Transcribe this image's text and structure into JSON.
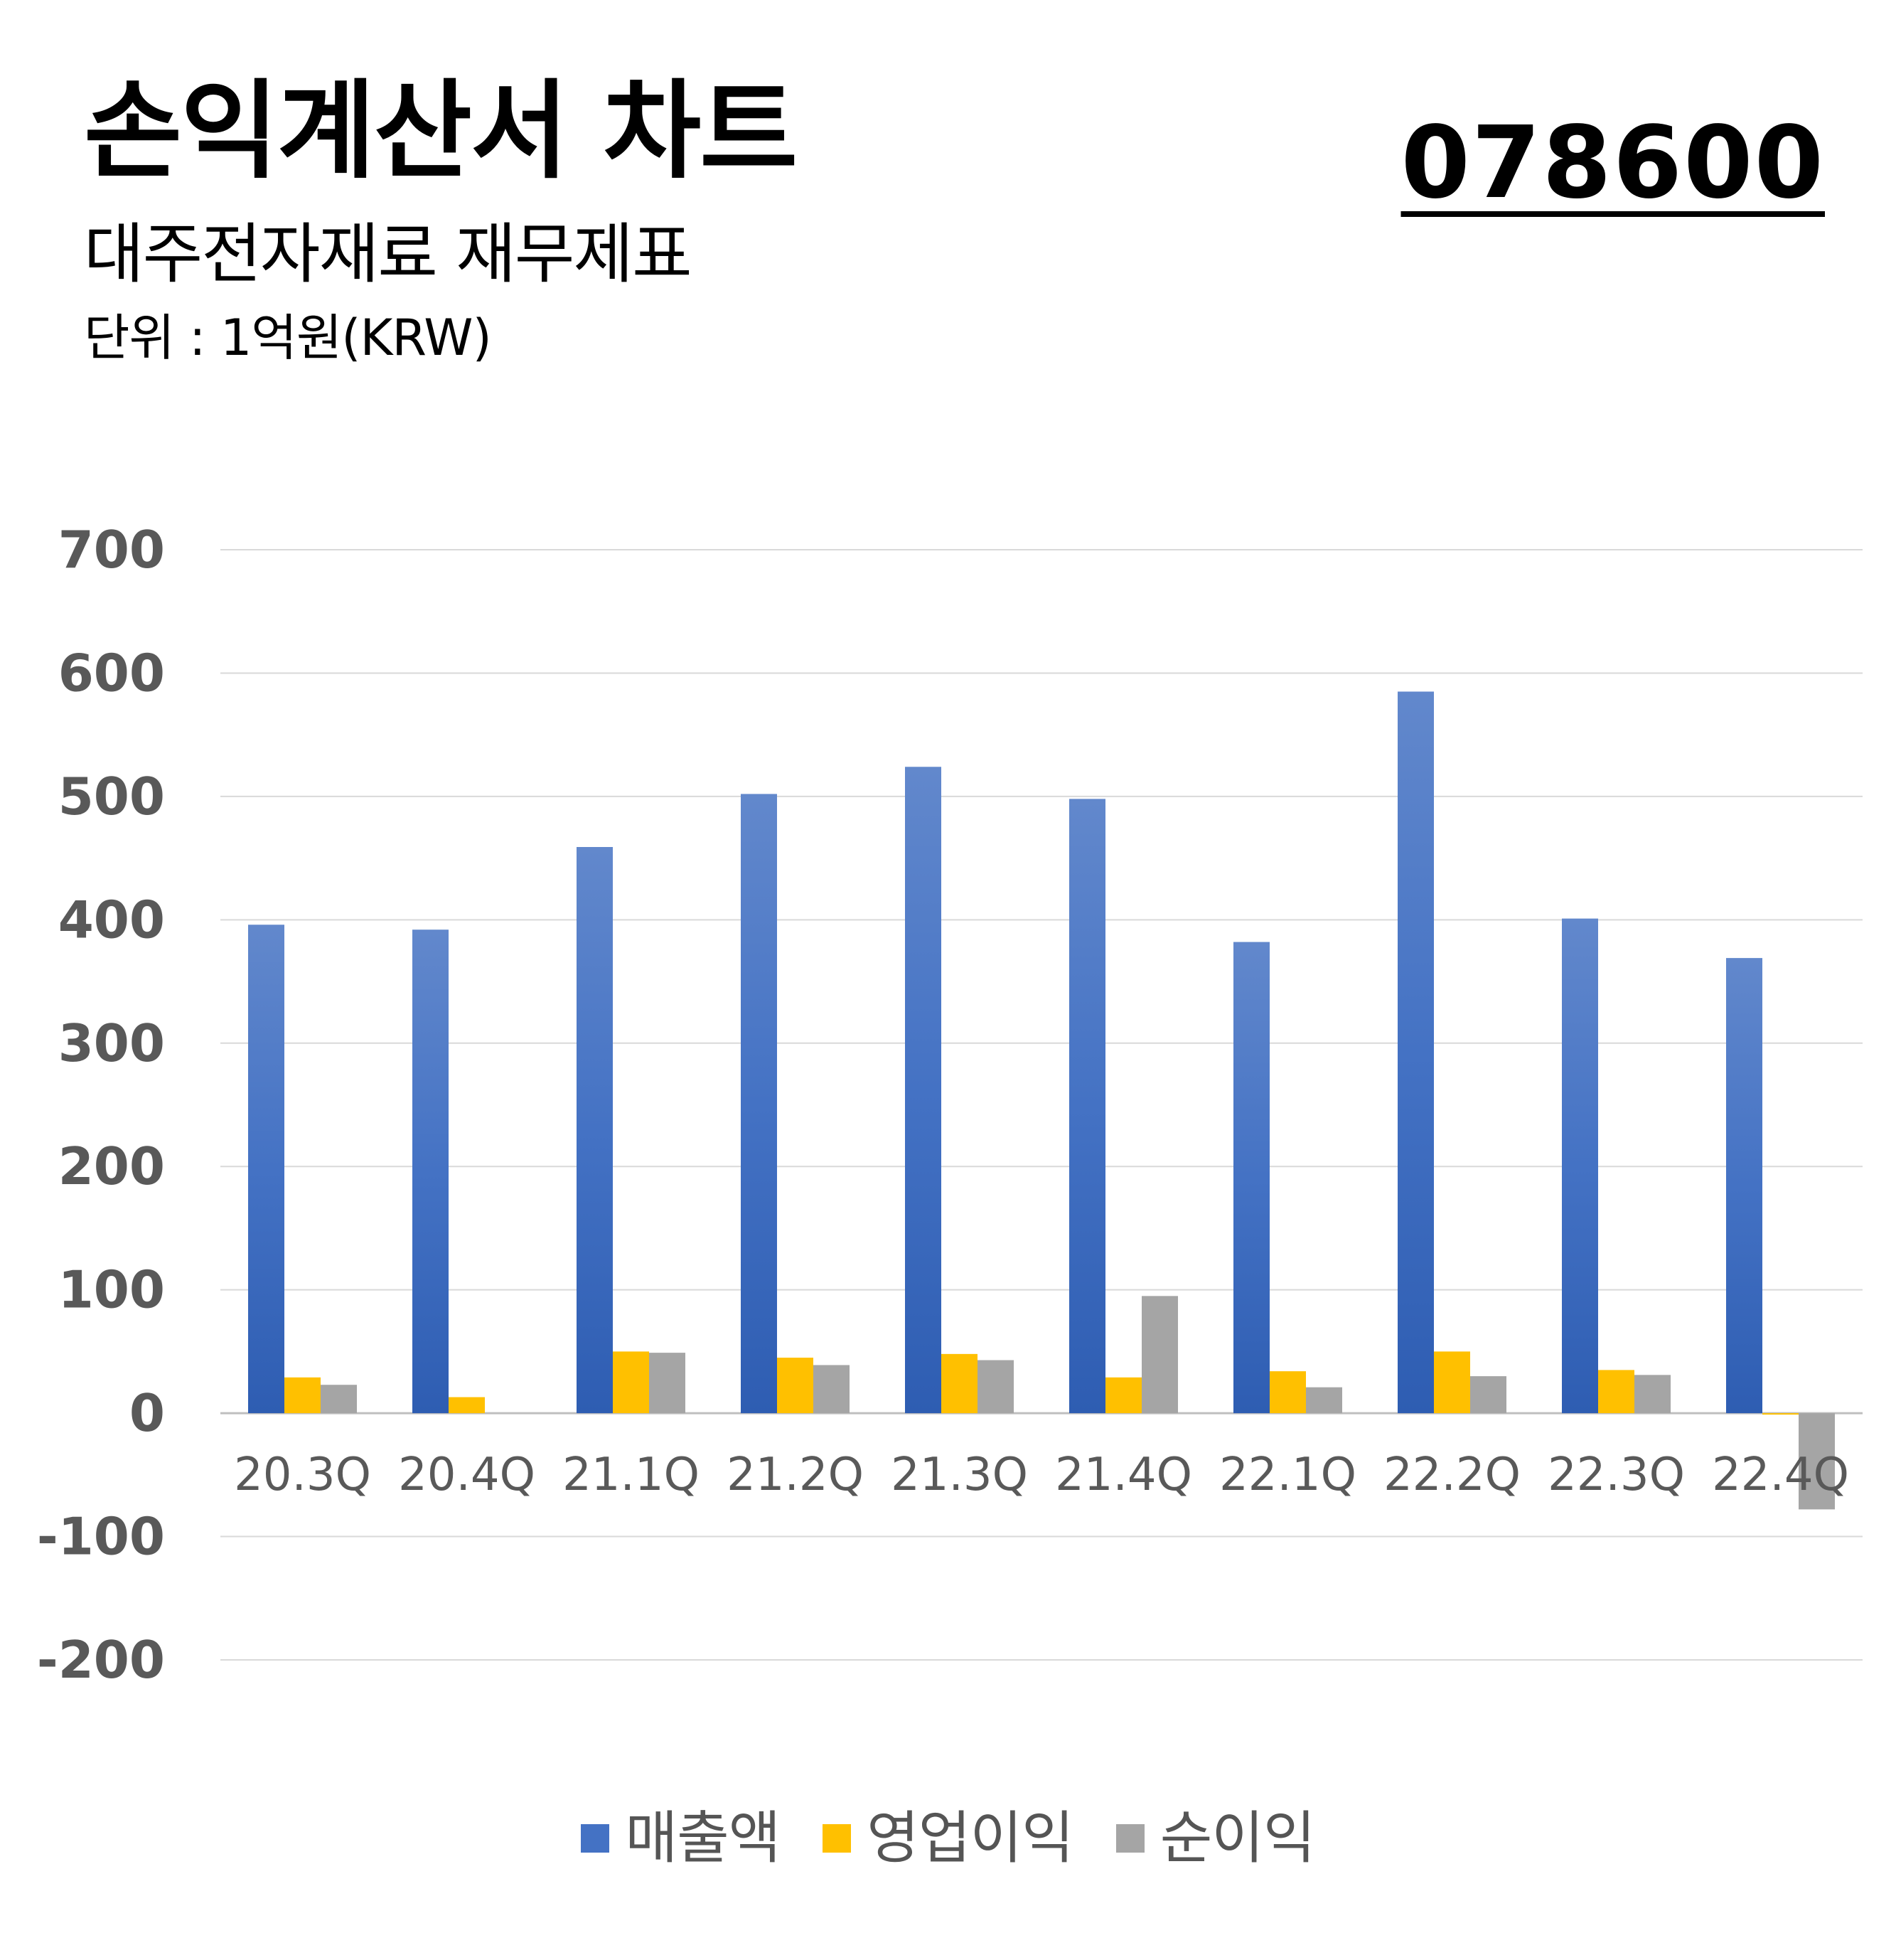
{
  "header": {
    "title": "손익계산서 차트",
    "subtitle": "대주전자재료 재무제표",
    "unit": "단위 : 1억원(KRW)",
    "ticker": "078600"
  },
  "colors": {
    "revenue": "#4472C4",
    "operating_profit": "#FFC000",
    "net_income": "#A5A5A5",
    "gridline": "#d9d9d9",
    "axis_text": "#595959"
  },
  "chart_data": {
    "type": "bar",
    "categories": [
      "20.3Q",
      "20.4Q",
      "21.1Q",
      "21.2Q",
      "21.3Q",
      "21.4Q",
      "22.1Q",
      "22.2Q",
      "22.3Q",
      "22.4Q"
    ],
    "series": [
      {
        "name": "매출액",
        "values": [
          396,
          392,
          459,
          502,
          524,
          498,
          382,
          585,
          401,
          369
        ]
      },
      {
        "name": "영업이익",
        "values": [
          29,
          13,
          50,
          45,
          48,
          29,
          34,
          50,
          35,
          -1
        ]
      },
      {
        "name": "순이익",
        "values": [
          23,
          0,
          49,
          39,
          43,
          95,
          21,
          30,
          31,
          -78
        ]
      }
    ],
    "ylim": [
      -200,
      700
    ],
    "yticks": [
      700,
      600,
      500,
      400,
      300,
      200,
      100,
      0,
      -100,
      -200
    ],
    "grid": true,
    "legend_position": "bottom"
  }
}
